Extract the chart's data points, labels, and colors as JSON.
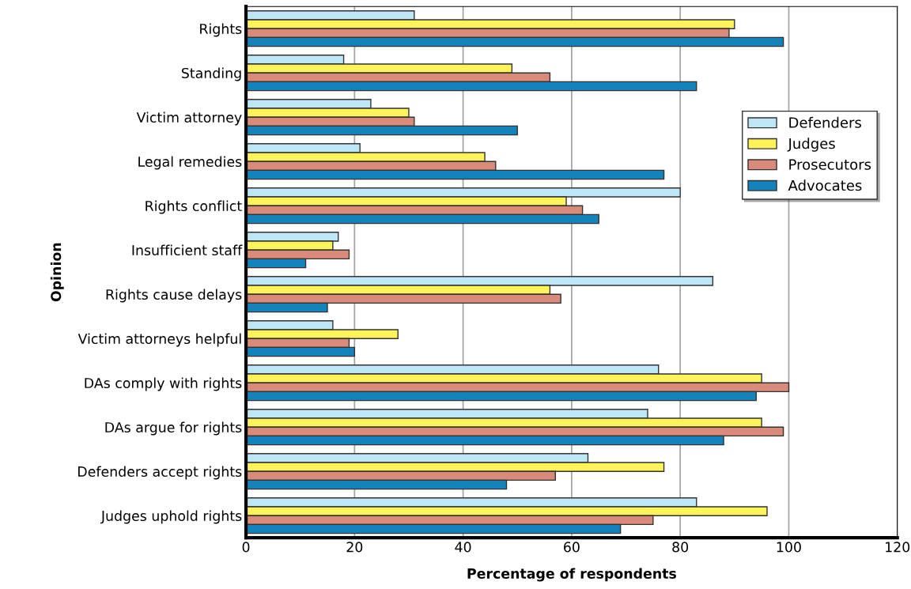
{
  "chart_data": {
    "type": "bar",
    "orientation": "horizontal",
    "xlabel": "Percentage of respondents",
    "ylabel": "Opinion",
    "categories": [
      "Rights",
      "Standing",
      "Victim attorney",
      "Legal remedies",
      "Rights conflict",
      "Insufficient staff",
      "Rights cause delays",
      "Victim attorneys helpful",
      "DAs comply with rights",
      "DAs argue for rights",
      "Defenders accept rights",
      "Judges uphold rights"
    ],
    "series": [
      {
        "name": "Defenders",
        "color": "#bde6f7",
        "values": [
          31,
          18,
          23,
          21,
          80,
          17,
          86,
          16,
          76,
          74,
          63,
          83
        ]
      },
      {
        "name": "Judges",
        "color": "#fff35a",
        "values": [
          90,
          49,
          30,
          44,
          59,
          16,
          56,
          28,
          95,
          95,
          77,
          96
        ]
      },
      {
        "name": "Prosecutors",
        "color": "#d98a7a",
        "values": [
          89,
          56,
          31,
          46,
          62,
          19,
          58,
          19,
          100,
          99,
          57,
          75
        ]
      },
      {
        "name": "Advocates",
        "color": "#1583bb",
        "values": [
          99,
          83,
          50,
          77,
          65,
          11,
          15,
          20,
          94,
          88,
          48,
          69
        ]
      }
    ],
    "xlim": [
      0,
      120
    ],
    "xticks": [
      0,
      20,
      40,
      60,
      80,
      100,
      120
    ],
    "grid": "x",
    "legend": "right"
  }
}
